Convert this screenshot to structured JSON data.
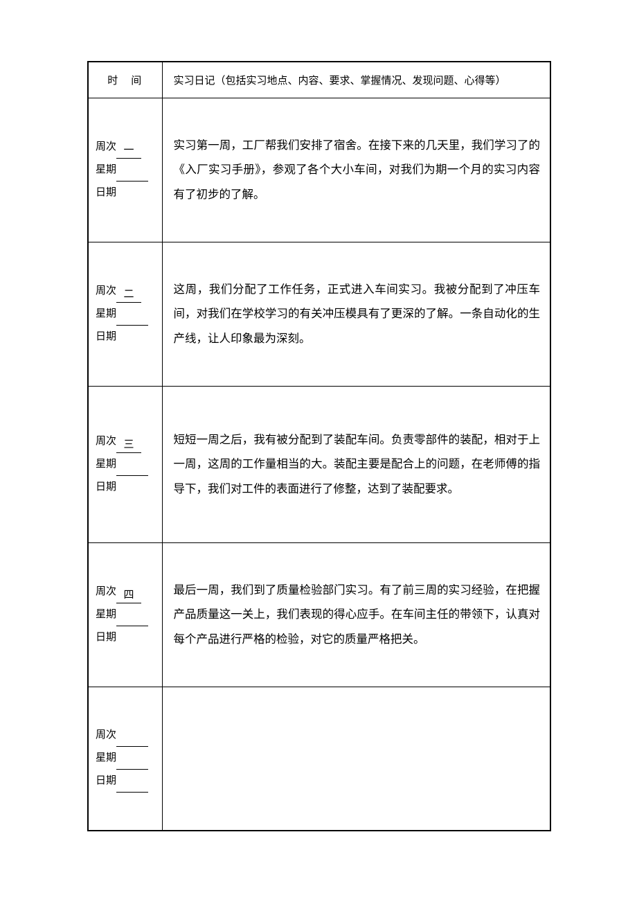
{
  "table": {
    "border_color": "#000000",
    "background_color": "#ffffff",
    "text_color": "#000000",
    "header": {
      "time_label": "时　间",
      "content_label": "实习日记（包括实习地点、内容、要求、掌握情况、发现问题、心得等）"
    },
    "labels": {
      "week": "周次",
      "weekday": "星期",
      "date": "日期"
    },
    "rows": [
      {
        "week_value": "一",
        "weekday_value": "",
        "date_value": "",
        "content": "实习第一周，工厂帮我们安排了宿舍。在接下来的几天里，我们学习了的《入厂实习手册》，参观了各个大小车间，对我们为期一个月的实习内容有了初步的了解。"
      },
      {
        "week_value": "二",
        "weekday_value": "",
        "date_value": "",
        "content": "这周，我们分配了工作任务，正式进入车间实习。我被分配到了冲压车间，对我们在学校学习的有关冲压模具有了更深的了解。一条自动化的生产线，让人印象最为深刻。"
      },
      {
        "week_value": "三",
        "weekday_value": "",
        "date_value": "",
        "content": "短短一周之后，我有被分配到了装配车间。负责零部件的装配，相对于上一周，这周的工作量相当的大。装配主要是配合上的问题，在老师傅的指导下，我们对工件的表面进行了修整，达到了装配要求。"
      },
      {
        "week_value": "四",
        "weekday_value": "",
        "date_value": "",
        "content": "最后一周，我们到了质量检验部门实习。有了前三周的实习经验，在把握产品质量这一关上，我们表现的得心应手。在车间主任的带领下，认真对每个产品进行严格的检验，对它的质量严格把关。"
      },
      {
        "week_value": "",
        "weekday_value": "",
        "date_value": "",
        "content": ""
      }
    ]
  }
}
